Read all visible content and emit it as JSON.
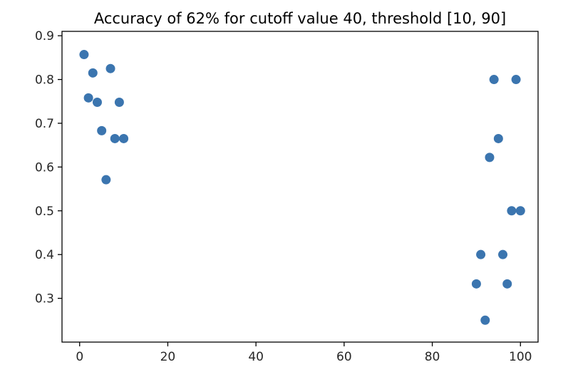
{
  "chart_data": {
    "type": "scatter",
    "title": "Accuracy of 62% for cutoff value 40, threshold [10, 90]",
    "xlabel": "",
    "ylabel": "",
    "xlim": [
      -4,
      104
    ],
    "ylim": [
      0.2,
      0.91
    ],
    "xticks": [
      0,
      20,
      40,
      60,
      80,
      100
    ],
    "yticks": [
      0.3,
      0.4,
      0.5,
      0.6,
      0.7,
      0.8,
      0.9
    ],
    "xtick_labels": [
      "0",
      "20",
      "40",
      "60",
      "80",
      "100"
    ],
    "ytick_labels": [
      "0.3",
      "0.4",
      "0.5",
      "0.6",
      "0.7",
      "0.8",
      "0.9"
    ],
    "grid": false,
    "marker_color": "#3b75af",
    "points": [
      {
        "x": 1,
        "y": 0.857
      },
      {
        "x": 2,
        "y": 0.758
      },
      {
        "x": 3,
        "y": 0.815
      },
      {
        "x": 4,
        "y": 0.748
      },
      {
        "x": 5,
        "y": 0.683
      },
      {
        "x": 6,
        "y": 0.571
      },
      {
        "x": 7,
        "y": 0.825
      },
      {
        "x": 8,
        "y": 0.665
      },
      {
        "x": 9,
        "y": 0.748
      },
      {
        "x": 10,
        "y": 0.665
      },
      {
        "x": 90,
        "y": 0.333
      },
      {
        "x": 91,
        "y": 0.4
      },
      {
        "x": 92,
        "y": 0.25
      },
      {
        "x": 93,
        "y": 0.622
      },
      {
        "x": 94,
        "y": 0.8
      },
      {
        "x": 95,
        "y": 0.665
      },
      {
        "x": 96,
        "y": 0.4
      },
      {
        "x": 97,
        "y": 0.333
      },
      {
        "x": 98,
        "y": 0.5
      },
      {
        "x": 99,
        "y": 0.8
      },
      {
        "x": 100,
        "y": 0.5
      }
    ]
  }
}
